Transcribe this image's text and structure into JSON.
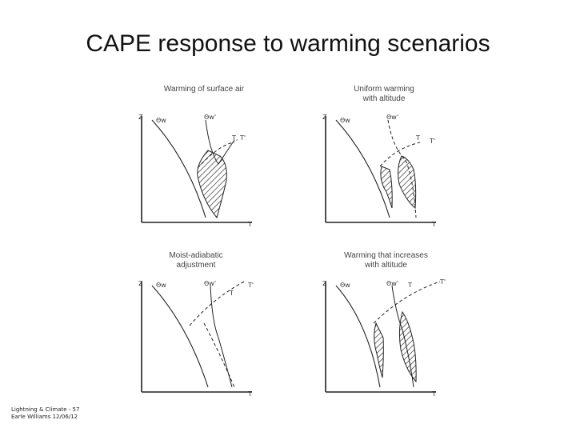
{
  "slide": {
    "title": "CAPE response to warming scenarios",
    "footer_line1": "Lightning & Climate - 57",
    "footer_line2": "Earle Williams 12/06/12"
  },
  "panels": [
    {
      "title": "Warming of surface air",
      "z_label": "Z",
      "t_label": "T",
      "curve1": "Θw",
      "curve2": "Θw'",
      "curve3": "T, T'"
    },
    {
      "title": "Uniform warming\nwith altitude",
      "z_label": "Z",
      "t_label": "T",
      "curve1": "Θw",
      "curve2": "Θw'",
      "curve3": "T",
      "curve4": "T'"
    },
    {
      "title": "Moist-adiabatic\nadjustment",
      "z_label": "Z",
      "t_label": "T",
      "curve1": "Θw",
      "curve2": "Θw'",
      "curve3": "T",
      "curve4": "T'"
    },
    {
      "title": "Warming that increases\nwith altitude",
      "z_label": "Z",
      "t_label": "T",
      "curve1": "Θw",
      "curve2": "Θw'",
      "curve3": "T",
      "curve4": "T'"
    }
  ]
}
